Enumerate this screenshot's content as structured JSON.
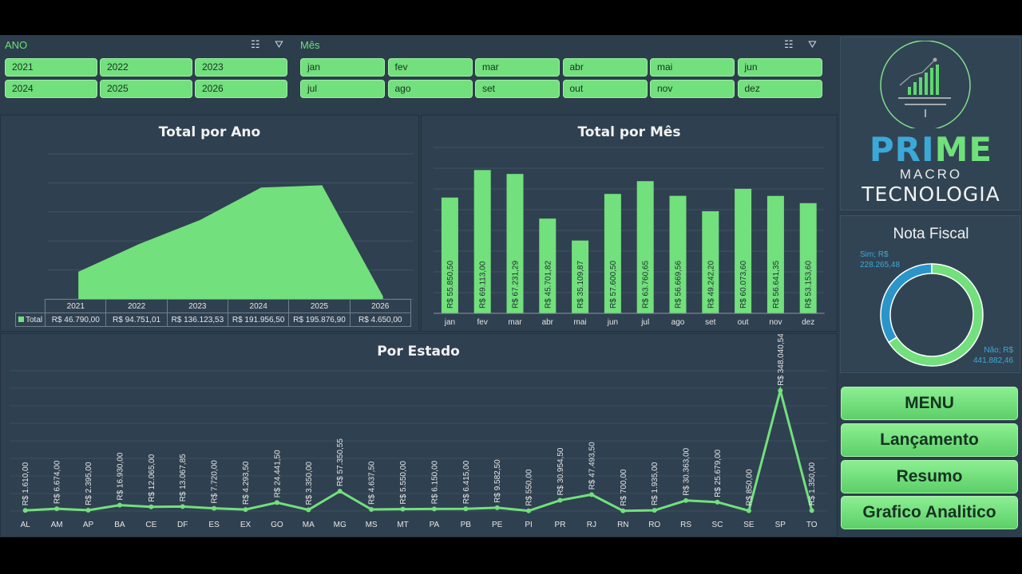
{
  "slicers": {
    "ano": {
      "title": "ANO",
      "items": [
        "2021",
        "2022",
        "2023",
        "2024",
        "2025",
        "2026"
      ]
    },
    "mes": {
      "title": "Mês",
      "items": [
        "jan",
        "fev",
        "mar",
        "abr",
        "mai",
        "jun",
        "jul",
        "ago",
        "set",
        "out",
        "nov",
        "dez"
      ]
    },
    "tools_glyph": "☰ ⏚"
  },
  "charts": {
    "ano_title": "Total por Ano",
    "mes_title": "Total por Mês",
    "estado_title": "Por Estado",
    "ano_legend": "Total"
  },
  "chart_data": [
    {
      "type": "area",
      "title": "Total por Ano",
      "categories": [
        "2021",
        "2022",
        "2023",
        "2024",
        "2025",
        "2026"
      ],
      "series": [
        {
          "name": "Total",
          "values": [
            46790.0,
            94751.01,
            136123.53,
            191956.5,
            195876.9,
            4650.0
          ]
        }
      ],
      "labels": [
        "R$ 46.790,00",
        "R$ 94.751,01",
        "R$ 136.123,53",
        "R$ 191.956,50",
        "R$ 195.876,90",
        "R$ 4.650,00"
      ],
      "ylim": [
        0,
        250000
      ]
    },
    {
      "type": "bar",
      "title": "Total por Mês",
      "categories": [
        "jan",
        "fev",
        "mar",
        "abr",
        "mai",
        "jun",
        "jul",
        "ago",
        "set",
        "out",
        "nov",
        "dez"
      ],
      "values": [
        55850.5,
        69113.0,
        67231.29,
        45701.82,
        35109.87,
        57600.5,
        63760.65,
        56669.56,
        49242.2,
        60073.6,
        56641.35,
        53153.6
      ],
      "labels": [
        "R$ 55.850,50",
        "R$ 69.113,00",
        "R$ 67.231,29",
        "R$ 45.701,82",
        "R$ 35.109,87",
        "R$ 57.600,50",
        "R$ 63.760,65",
        "R$ 56.669,56",
        "R$ 49.242,20",
        "R$ 60.073,60",
        "R$ 56.641,35",
        "R$ 53.153,60"
      ],
      "ylim": [
        0,
        80000
      ]
    },
    {
      "type": "line",
      "title": "Por Estado",
      "categories": [
        "AL",
        "AM",
        "AP",
        "BA",
        "CE",
        "DF",
        "ES",
        "EX",
        "GO",
        "MA",
        "MG",
        "MS",
        "MT",
        "PA",
        "PB",
        "PE",
        "PI",
        "PR",
        "RJ",
        "RN",
        "RO",
        "RS",
        "SC",
        "SE",
        "SP",
        "TO"
      ],
      "values": [
        1610.0,
        6674.0,
        2395.0,
        16930.0,
        12065.0,
        13067.85,
        7720.0,
        4293.5,
        24441.5,
        3350.0,
        57350.55,
        4637.5,
        5550.0,
        6150.0,
        6415.0,
        9582.5,
        550.0,
        30954.5,
        47493.5,
        700.0,
        1935.0,
        30363.0,
        25679.0,
        850.0,
        348040.54,
        1350.0
      ],
      "labels": [
        "R$ 1.610,00",
        "R$ 6.674,00",
        "R$ 2.395,00",
        "R$ 16.930,00",
        "R$ 12.065,00",
        "R$ 13.067,85",
        "R$ 7.720,00",
        "R$ 4.293,50",
        "R$ 24.441,50",
        "R$ 3.350,00",
        "R$ 57.350,55",
        "R$ 4.637,50",
        "R$ 5.550,00",
        "R$ 6.150,00",
        "R$ 6.415,00",
        "R$ 9.582,50",
        "R$ 550,00",
        "R$ 30.954,50",
        "R$ 47.493,50",
        "R$ 700,00",
        "R$ 1.935,00",
        "R$ 30.363,00",
        "R$ 25.679,00",
        "R$ 850,00",
        "R$ 348.040,54",
        "R$ 1.350,00"
      ],
      "ylim": [
        0,
        350000
      ]
    },
    {
      "type": "pie",
      "title": "Nota Fiscal",
      "categories": [
        "Sim",
        "Não"
      ],
      "values": [
        228265.48,
        441882.46
      ],
      "labels": [
        "Sim; R$\n228.265,48",
        "Não; R$\n441.882,46"
      ]
    }
  ],
  "colors": {
    "bar": "#72e07c",
    "sim": "#2a95c9",
    "nao": "#72e07c"
  },
  "logo": {
    "prime": "PRIME",
    "macro": "MACRO",
    "tecnologia": "TECNOLOGIA"
  },
  "nota_fiscal": {
    "title": "Nota Fiscal",
    "sim_label_1": "Sim; R$",
    "sim_label_2": "228.265,48",
    "nao_label_1": "Não; R$",
    "nao_label_2": "441.882,46"
  },
  "nav": {
    "menu": "MENU",
    "lancamento": "Lançamento",
    "resumo": "Resumo",
    "grafico": "Grafico Analitico"
  }
}
